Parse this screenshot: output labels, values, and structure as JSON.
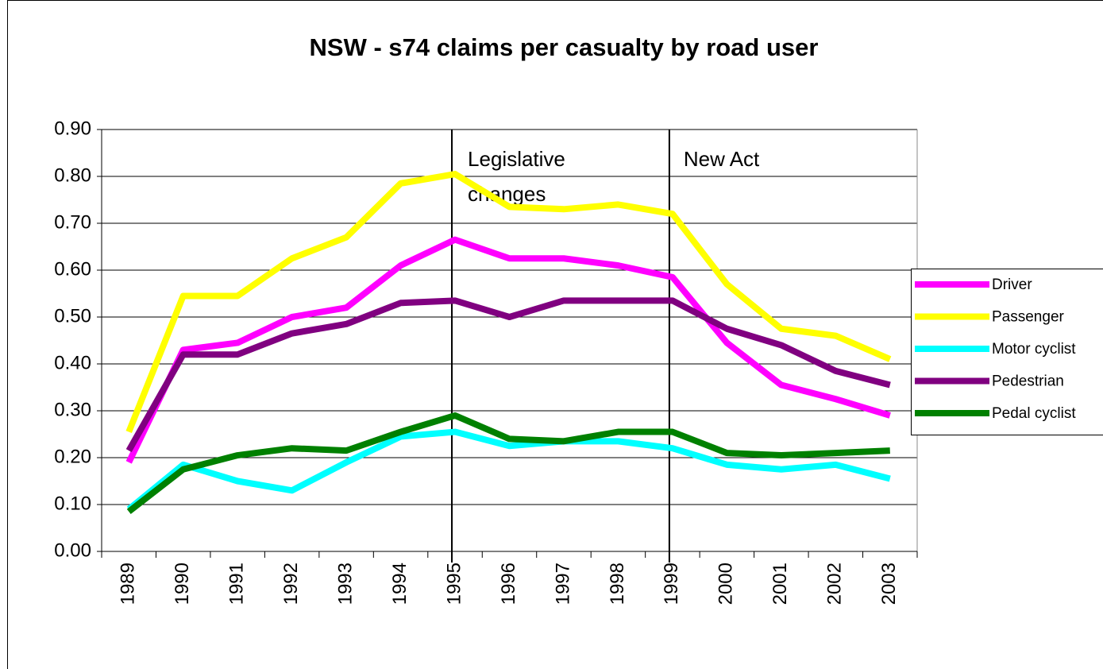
{
  "chart_data": {
    "type": "line",
    "title": "NSW - s74 claims per casualty by road user",
    "categories": [
      "1989",
      "1990",
      "1991",
      "1992",
      "1993",
      "1994",
      "1995",
      "1996",
      "1997",
      "1998",
      "1999",
      "2000",
      "2001",
      "2002",
      "2003"
    ],
    "series": [
      {
        "name": "Driver",
        "color": "#ff00ff",
        "values": [
          0.19,
          0.43,
          0.445,
          0.5,
          0.52,
          0.61,
          0.665,
          0.625,
          0.625,
          0.61,
          0.585,
          0.445,
          0.355,
          0.325,
          0.29
        ]
      },
      {
        "name": "Passenger",
        "color": "#ffff00",
        "values": [
          0.255,
          0.545,
          0.545,
          0.625,
          0.67,
          0.785,
          0.805,
          0.735,
          0.73,
          0.74,
          0.72,
          0.57,
          0.475,
          0.46,
          0.41
        ]
      },
      {
        "name": "Motor cyclist",
        "color": "#00ffff",
        "values": [
          0.09,
          0.185,
          0.15,
          0.13,
          0.19,
          0.245,
          0.255,
          0.225,
          0.235,
          0.235,
          0.22,
          0.185,
          0.175,
          0.185,
          0.155
        ]
      },
      {
        "name": "Pedestrian",
        "color": "#800080",
        "values": [
          0.215,
          0.42,
          0.42,
          0.465,
          0.485,
          0.53,
          0.535,
          0.5,
          0.535,
          0.535,
          0.535,
          0.475,
          0.44,
          0.385,
          0.355
        ]
      },
      {
        "name": "Pedal cyclist",
        "color": "#008000",
        "values": [
          0.085,
          0.175,
          0.205,
          0.22,
          0.215,
          0.255,
          0.29,
          0.24,
          0.235,
          0.255,
          0.255,
          0.21,
          0.205,
          0.21,
          0.215
        ]
      }
    ],
    "ylim": [
      0,
      0.9
    ],
    "yticks": [
      {
        "value": 0,
        "label": "0.00"
      },
      {
        "value": 0.1,
        "label": "0.10"
      },
      {
        "value": 0.2,
        "label": "0.20"
      },
      {
        "value": 0.3,
        "label": "0.30"
      },
      {
        "value": 0.4,
        "label": "0.40"
      },
      {
        "value": 0.5,
        "label": "0.50"
      },
      {
        "value": 0.6,
        "label": "0.60"
      },
      {
        "value": 0.7,
        "label": "0.70"
      },
      {
        "value": 0.8,
        "label": "0.80"
      },
      {
        "value": 0.9,
        "label": "0.90"
      }
    ],
    "grid": true,
    "legend": "right",
    "annotations": [
      {
        "x": "1995",
        "lines": [
          "Legislative",
          "changes"
        ]
      },
      {
        "x": "1999",
        "lines": [
          "New Act"
        ]
      }
    ]
  }
}
